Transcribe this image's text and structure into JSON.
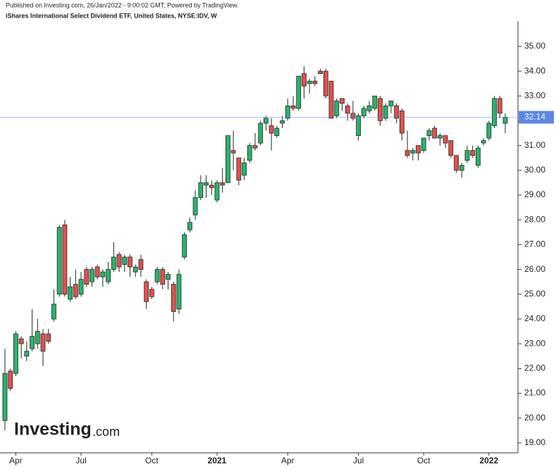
{
  "header": {
    "published": "Published on Investing.com, 26/Jan/2022 - 9:00:02 GMT, Powered by TradingView.",
    "instrument": "iShares International Select Dividend ETF, United States, NYSE:IDV, W"
  },
  "logo": {
    "name": "Investing",
    "suffix": ".com"
  },
  "chart_data": {
    "type": "candlestick",
    "categories": [
      null,
      null,
      "Apr",
      null,
      null,
      null,
      null,
      null,
      null,
      null,
      null,
      null,
      null,
      null,
      "Jul",
      null,
      null,
      null,
      null,
      null,
      null,
      null,
      null,
      null,
      null,
      null,
      null,
      "Oct",
      null,
      null,
      null,
      null,
      null,
      null,
      null,
      null,
      null,
      null,
      null,
      "2021",
      null,
      null,
      null,
      null,
      null,
      null,
      null,
      null,
      null,
      null,
      null,
      null,
      "Apr",
      null,
      null,
      null,
      null,
      null,
      null,
      null,
      null,
      null,
      null,
      null,
      null,
      "Jul",
      null,
      null,
      null,
      null,
      null,
      null,
      null,
      null,
      null,
      null,
      null,
      "Oct",
      null,
      null,
      null,
      null,
      null,
      null,
      null,
      null,
      null,
      null,
      null,
      "2022",
      null,
      null,
      null
    ],
    "open": [
      19.9,
      21.9,
      21.8,
      23.2,
      22.5,
      22.8,
      23.0,
      23.4,
      23.4,
      24.0,
      25.0,
      27.8,
      24.8,
      25.4,
      25.0,
      26.0,
      25.5,
      26.1,
      25.7,
      25.5,
      26.0,
      26.6,
      26.2,
      26.5,
      25.9,
      26.4,
      25.5,
      25.2,
      25.5,
      26.0,
      25.6,
      25.4,
      24.4,
      26.5,
      27.6,
      28.2,
      28.9,
      29.4,
      29.4,
      28.8,
      29.5,
      29.5,
      30.8,
      30.5,
      29.8,
      30.4,
      31.0,
      31.1,
      31.9,
      31.8,
      31.4,
      31.9,
      32.1,
      32.6,
      32.5,
      33.9,
      33.5,
      33.6,
      34.0,
      34.0,
      33.6,
      32.2,
      32.9,
      32.6,
      32.3,
      31.4,
      32.2,
      32.4,
      32.5,
      32.9,
      32.1,
      32.6,
      32.6,
      32.4,
      30.8,
      30.7,
      31.0,
      30.8,
      31.4,
      31.7,
      31.3,
      31.4,
      31.2,
      30.6,
      30.0,
      30.4,
      30.8,
      30.2,
      31.1,
      31.3,
      31.8,
      32.9,
      31.9
    ],
    "high": [
      22.8,
      22.0,
      23.5,
      23.3,
      23.1,
      24.4,
      24.0,
      23.6,
      23.6,
      25.2,
      27.8,
      28.0,
      25.7,
      26.0,
      25.9,
      26.1,
      26.1,
      26.2,
      26.0,
      26.3,
      27.1,
      26.7,
      26.6,
      26.6,
      26.2,
      26.6,
      25.6,
      25.3,
      26.1,
      26.1,
      25.9,
      25.5,
      26.0,
      27.5,
      28.1,
      29.2,
      29.8,
      29.8,
      29.6,
      29.6,
      30.1,
      31.4,
      31.6,
      30.5,
      30.5,
      31.1,
      31.5,
      32.0,
      32.2,
      32.1,
      31.8,
      32.2,
      32.9,
      33.0,
      33.8,
      34.2,
      33.7,
      33.8,
      34.1,
      34.1,
      33.6,
      32.9,
      32.9,
      32.7,
      32.8,
      32.3,
      32.6,
      32.8,
      33.0,
      33.0,
      32.7,
      32.8,
      32.7,
      32.5,
      31.6,
      30.9,
      31.0,
      31.3,
      31.7,
      31.8,
      31.5,
      31.4,
      31.2,
      30.6,
      30.3,
      31.0,
      31.0,
      31.0,
      31.3,
      32.0,
      33.0,
      33.0,
      32.3
    ],
    "low": [
      19.5,
      21.1,
      21.7,
      22.4,
      22.3,
      22.7,
      22.8,
      22.1,
      23.0,
      23.9,
      24.9,
      24.9,
      24.7,
      24.8,
      24.9,
      25.3,
      25.3,
      25.6,
      25.3,
      25.4,
      25.9,
      25.9,
      25.9,
      25.7,
      25.7,
      25.7,
      24.4,
      24.8,
      25.4,
      25.2,
      25.2,
      23.9,
      24.2,
      26.4,
      27.5,
      28.0,
      28.8,
      28.9,
      29.0,
      28.7,
      29.1,
      29.5,
      30.0,
      29.4,
      29.6,
      30.3,
      30.8,
      31.0,
      31.6,
      30.8,
      31.3,
      31.7,
      32.0,
      32.4,
      32.4,
      32.9,
      33.1,
      33.4,
      33.9,
      32.9,
      32.1,
      32.1,
      32.4,
      32.0,
      32.0,
      31.2,
      32.1,
      32.3,
      32.4,
      31.8,
      32.0,
      32.3,
      31.9,
      31.2,
      30.5,
      30.4,
      30.4,
      30.7,
      31.2,
      31.3,
      31.0,
      30.9,
      30.5,
      29.9,
      29.7,
      30.3,
      30.5,
      30.1,
      31.0,
      31.2,
      31.7,
      32.1,
      31.5
    ],
    "close": [
      21.8,
      21.2,
      23.4,
      23.0,
      22.7,
      23.3,
      23.5,
      22.7,
      23.1,
      24.6,
      27.7,
      25.0,
      25.3,
      24.9,
      25.6,
      25.4,
      26.0,
      25.7,
      25.9,
      26.0,
      26.5,
      26.1,
      26.5,
      26.1,
      26.1,
      26.0,
      24.7,
      24.9,
      26.0,
      25.4,
      25.8,
      24.3,
      25.8,
      27.4,
      27.9,
      28.9,
      29.5,
      29.5,
      29.3,
      29.5,
      29.4,
      31.4,
      30.7,
      29.6,
      30.3,
      31.0,
      30.9,
      31.9,
      32.1,
      31.5,
      31.7,
      32.0,
      32.6,
      32.5,
      33.8,
      33.4,
      33.6,
      33.5,
      33.9,
      33.0,
      32.1,
      32.8,
      32.7,
      32.3,
      32.1,
      32.2,
      32.5,
      32.6,
      33.0,
      32.0,
      32.6,
      32.8,
      32.1,
      31.5,
      30.6,
      30.8,
      30.7,
      31.3,
      31.6,
      31.3,
      31.4,
      31.1,
      30.6,
      30.0,
      30.2,
      30.8,
      30.6,
      30.9,
      31.2,
      31.9,
      32.9,
      32.3,
      32.14
    ],
    "up_color": "#2bb36b",
    "down_color": "#e2504c",
    "last_price": 32.14,
    "last_price_color": "#5b86e5",
    "ylim": [
      18.6,
      36.02
    ],
    "yticks": [
      {
        "value": 19,
        "label": "19.00"
      },
      {
        "value": 20,
        "label": "20.00"
      },
      {
        "value": 21,
        "label": "21.00"
      },
      {
        "value": 22,
        "label": "22.00"
      },
      {
        "value": 23,
        "label": "23.00"
      },
      {
        "value": 24,
        "label": "24.00"
      },
      {
        "value": 25,
        "label": "25.00"
      },
      {
        "value": 26,
        "label": "26.00"
      },
      {
        "value": 27,
        "label": "27.00"
      },
      {
        "value": 28,
        "label": "28.00"
      },
      {
        "value": 29,
        "label": "29.00"
      },
      {
        "value": 30,
        "label": "30.00"
      },
      {
        "value": 31,
        "label": "31.00"
      },
      {
        "value": 32,
        "label": "32.00"
      },
      {
        "value": 33,
        "label": "33.00"
      },
      {
        "value": 34,
        "label": "34.00"
      },
      {
        "value": 35,
        "label": "35.00"
      }
    ]
  }
}
